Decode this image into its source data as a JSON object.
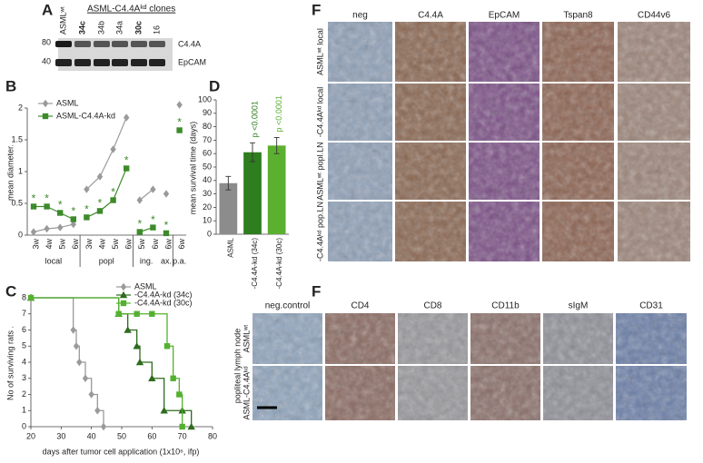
{
  "panel_letters": {
    "A": "A",
    "B": "B",
    "C": "C",
    "D": "D",
    "F_top": "F",
    "F_bottom": "F"
  },
  "blot": {
    "title": "ASML-C4.4Aᵏᵈ clones",
    "lanes": [
      "ASMLʷᵗ",
      "34c",
      "34b",
      "34a",
      "30c",
      "16"
    ],
    "markers": [
      80,
      40
    ],
    "proteins": [
      "C4.4A",
      "EpCAM"
    ]
  },
  "chart_data": [
    {
      "type": "line",
      "ylabel": "mean diameter.",
      "categories": [
        "3w",
        "4w",
        "5w",
        "6w",
        "3w",
        "4w",
        "5w",
        "6w",
        "5w",
        "6w",
        "6w",
        "6w"
      ],
      "groups": [
        "local",
        "local",
        "local",
        "local",
        "popl",
        "popl",
        "popl",
        "popl",
        "ing.",
        "ing.",
        "ax.",
        "p.a."
      ],
      "ylim": [
        0,
        2
      ],
      "yticks": [
        0,
        0.5,
        1,
        1.5,
        2
      ],
      "series": [
        {
          "name": "ASML",
          "color": "#9a9a9a",
          "marker": "diamond",
          "values": [
            0.05,
            0.1,
            0.12,
            0.17,
            0.72,
            0.92,
            1.35,
            1.85,
            0.55,
            0.72,
            0.65,
            2.05
          ]
        },
        {
          "name": "ASML-C4.4A-kd",
          "color": "#3d8a2b",
          "marker": "square",
          "annotation": "*",
          "values": [
            0.45,
            0.45,
            0.35,
            0.25,
            0.28,
            0.38,
            0.55,
            1.05,
            0.05,
            0.12,
            0.03,
            1.65
          ]
        }
      ]
    },
    {
      "type": "step",
      "xlabel": "days after tumor cell application (1x10⁶, ifp)",
      "ylabel": "No of surviving rats .",
      "xlim": [
        20,
        80
      ],
      "xticks": [
        20,
        30,
        40,
        50,
        60,
        70,
        80
      ],
      "ylim": [
        0,
        8
      ],
      "yticks": [
        0,
        1,
        2,
        3,
        4,
        5,
        6,
        7,
        8
      ],
      "series": [
        {
          "name": "ASML",
          "color": "#9a9a9a",
          "marker": "diamond",
          "x": [
            20,
            34,
            35,
            36,
            38,
            40,
            42,
            44
          ],
          "values": [
            8,
            6,
            5,
            4,
            3,
            2,
            1,
            0
          ]
        },
        {
          "name": "-C4.4A-kd (34c)",
          "color": "#2e6b1e",
          "marker": "triangle",
          "x": [
            20,
            49,
            52,
            55,
            56,
            60,
            64,
            70,
            73
          ],
          "values": [
            8,
            7,
            6,
            5,
            4,
            3,
            1,
            1,
            0
          ]
        },
        {
          "name": "-C4.4A-kd (30c)",
          "color": "#55b030",
          "marker": "square",
          "x": [
            20,
            49,
            55,
            60,
            65,
            67,
            69,
            70
          ],
          "values": [
            8,
            7,
            7,
            7,
            5,
            3,
            2,
            0
          ]
        }
      ]
    },
    {
      "type": "bar",
      "ylabel": "mean survival time (days)",
      "categories": [
        "ASML",
        "-C4.4A-kd (34c)",
        "-C4.4A-kd (30c)"
      ],
      "values": [
        38,
        61,
        66
      ],
      "errors": [
        5,
        7,
        6
      ],
      "colors": [
        "#8c8c8c",
        "#2e7d1e",
        "#5cb030"
      ],
      "annotations": [
        null,
        "p <0.0001",
        "p <0.0001"
      ],
      "ylim": [
        0,
        100
      ],
      "yticks": [
        0,
        10,
        20,
        30,
        40,
        50,
        60,
        70,
        80,
        90,
        100
      ]
    }
  ],
  "histology_top": {
    "columns": [
      "neg",
      "C4.4A",
      "EpCAM",
      "Tspan8",
      "CD44v6"
    ],
    "rows": [
      "ASMLʷᵗ local",
      "-C4.4Aᵏᵈ local",
      "ASMLʷᵗ popl.LN",
      "-C4.4Aᵏᵈ pop.LN"
    ]
  },
  "histology_bottom": {
    "columns": [
      "neg.control",
      "CD4",
      "CD8",
      "CD11b",
      "sIgM",
      "CD31"
    ],
    "group_label": "popliteal lymph node",
    "rows": [
      "ASMLʷᵗ",
      "ASML-C4.4Aᵏᵈ"
    ]
  }
}
